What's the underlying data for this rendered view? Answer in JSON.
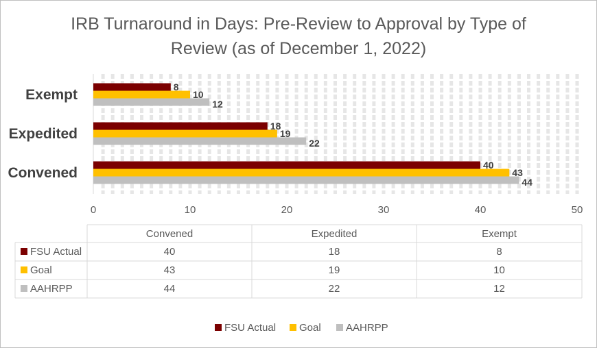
{
  "chart_data": {
    "type": "bar",
    "orientation": "horizontal",
    "title": "IRB Turnaround in Days: Pre-Review to Approval by Type of Review (as of December 1, 2022)",
    "title_lines": [
      "IRB Turnaround in Days: Pre-Review to Approval by Type of",
      "Review (as of December 1, 2022)"
    ],
    "categories": [
      "Convened",
      "Expedited",
      "Exempt"
    ],
    "series": [
      {
        "name": "FSU Actual",
        "color": "#7b0000",
        "values": [
          40,
          18,
          8
        ]
      },
      {
        "name": "Goal",
        "color": "#ffc000",
        "values": [
          43,
          19,
          10
        ]
      },
      {
        "name": "AAHRPP",
        "color": "#bfbfbf",
        "values": [
          44,
          22,
          12
        ]
      }
    ],
    "xlim": [
      0,
      50
    ],
    "x_ticks": [
      0,
      10,
      20,
      30,
      40,
      50
    ],
    "xlabel": "",
    "ylabel": "",
    "data_labels": true,
    "data_table": true,
    "legend": "bottom",
    "grid": "vertical dashed"
  }
}
